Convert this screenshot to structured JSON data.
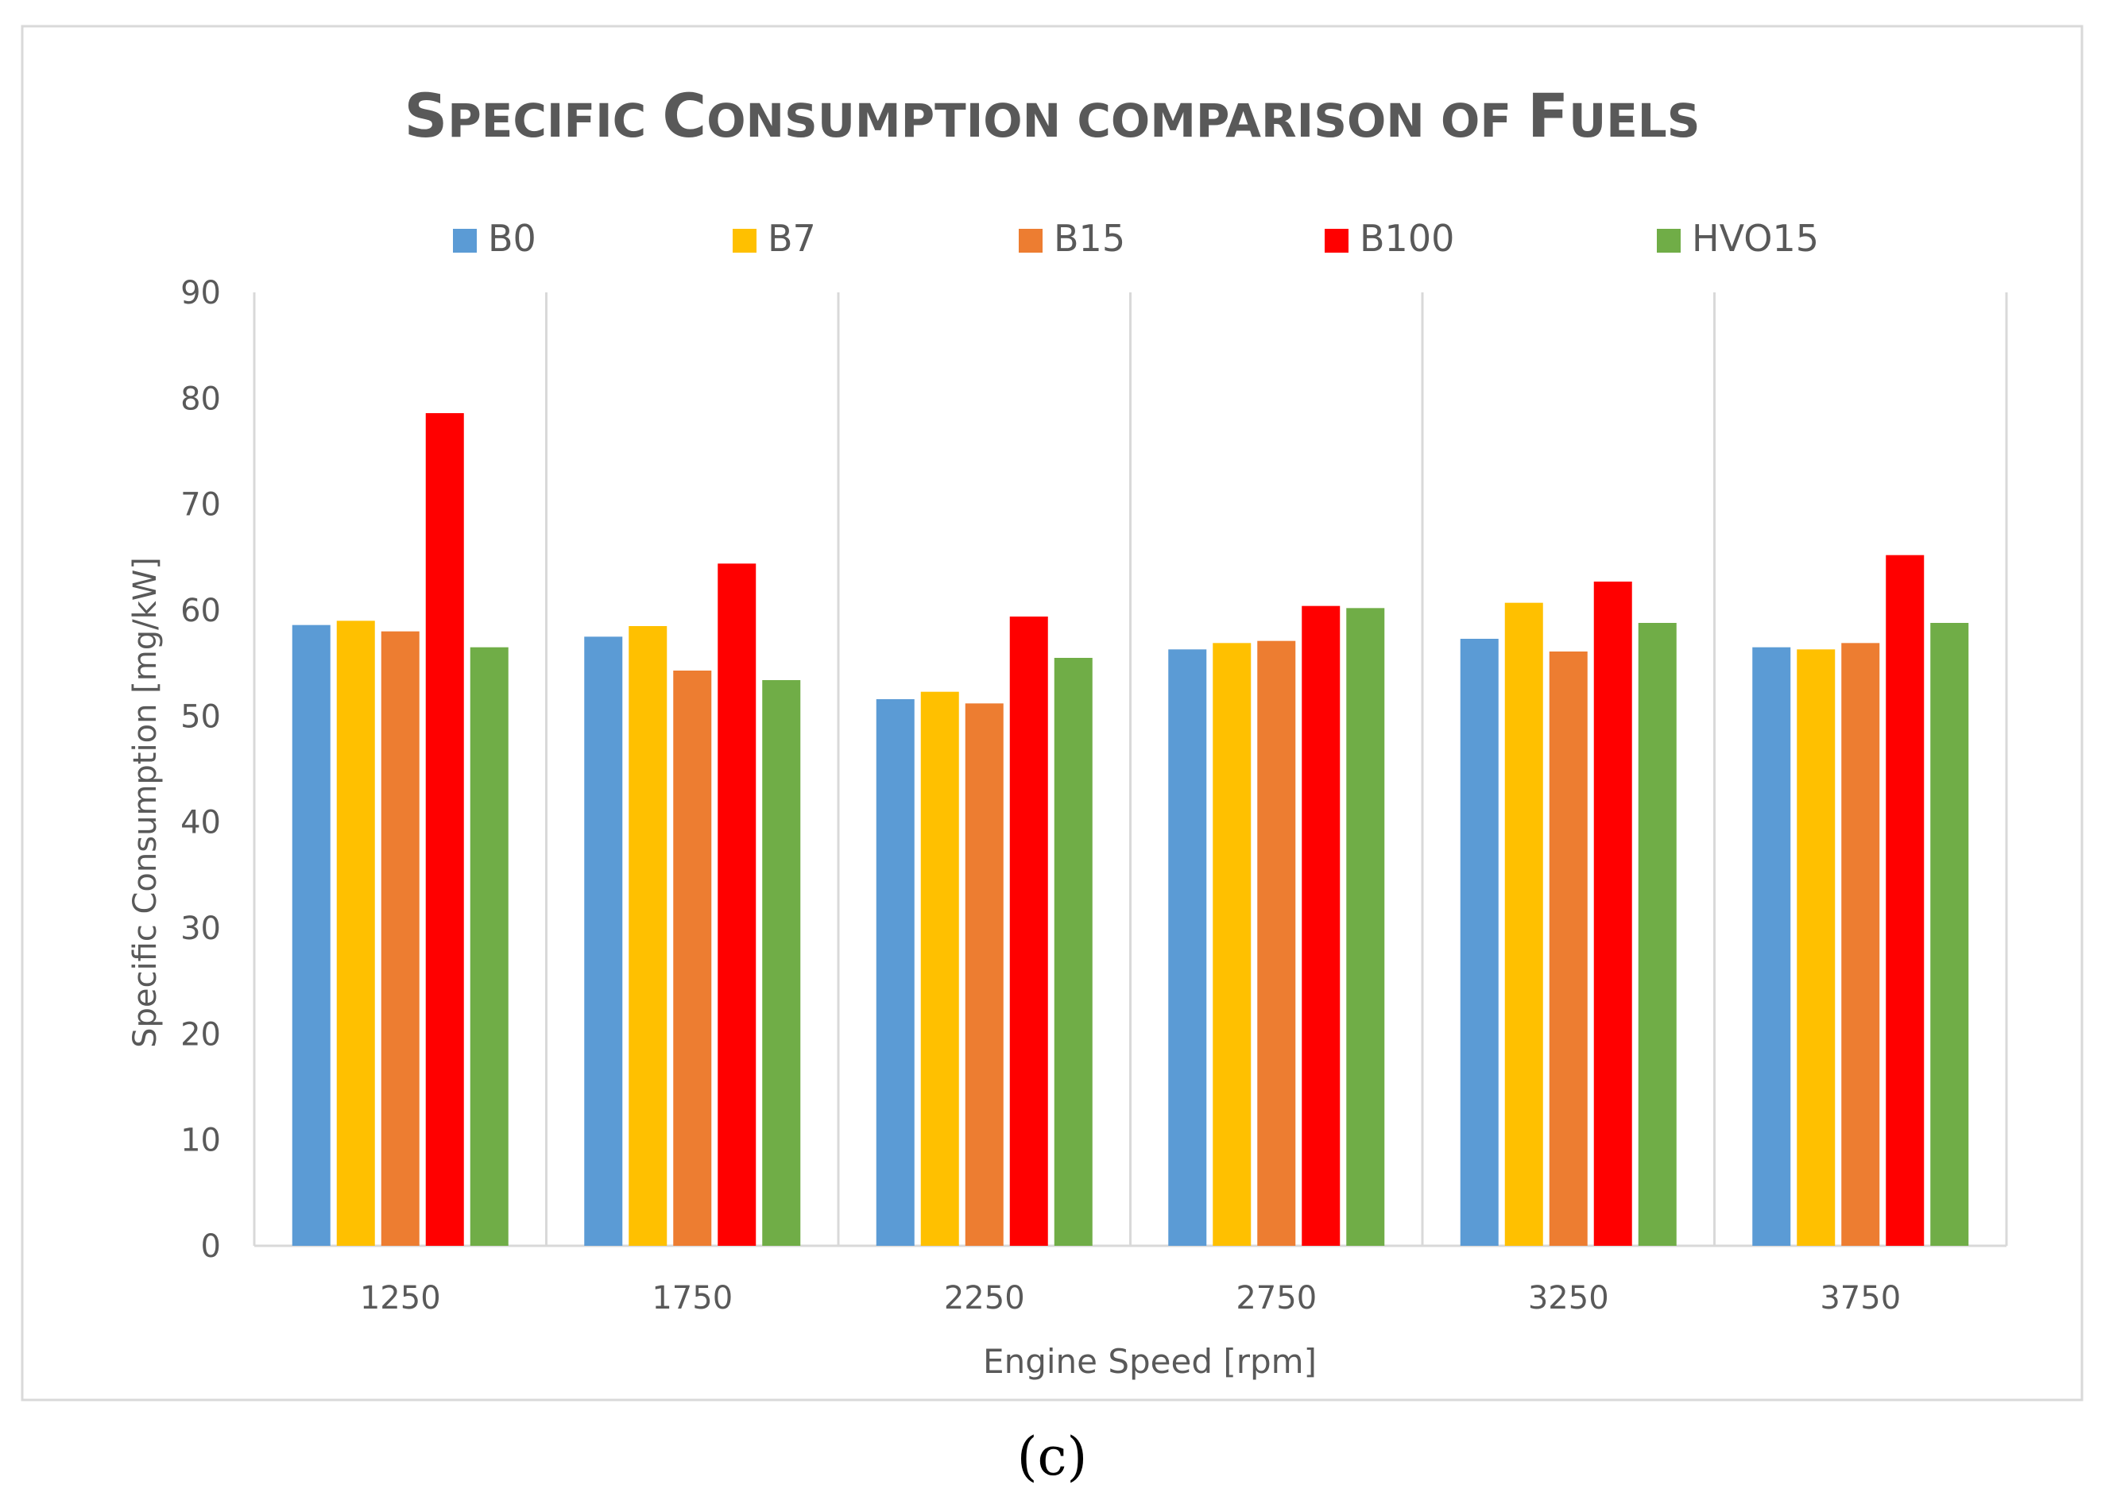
{
  "chart_data": {
    "type": "bar",
    "title_parts": [
      {
        "text": "S",
        "small": false
      },
      {
        "text": "PECIFIC ",
        "small": true
      },
      {
        "text": "C",
        "small": false
      },
      {
        "text": "ONSUMPTION COMPARISON OF ",
        "small": true
      },
      {
        "text": "F",
        "small": false
      },
      {
        "text": "UELS",
        "small": true
      }
    ],
    "title": "Specific Consumption comparison of Fuels",
    "xlabel": "Engine Speed [rpm]",
    "ylabel": "Specific Consumption [mg/kW]",
    "ylim": [
      0,
      90
    ],
    "yticks": [
      0,
      10,
      20,
      30,
      40,
      50,
      60,
      70,
      80,
      90
    ],
    "grid": false,
    "legend_position": "top",
    "categories": [
      "1250",
      "1750",
      "2250",
      "2750",
      "3250",
      "3750"
    ],
    "series": [
      {
        "name": "B0",
        "color": "#5b9bd5",
        "values": [
          58.6,
          57.5,
          51.6,
          56.3,
          57.3,
          56.5
        ]
      },
      {
        "name": "B7",
        "color": "#ffc000",
        "values": [
          59.0,
          58.5,
          52.3,
          56.9,
          60.7,
          56.3
        ]
      },
      {
        "name": "B15",
        "color": "#ed7d31",
        "values": [
          58.0,
          54.3,
          51.2,
          57.1,
          56.1,
          56.9
        ]
      },
      {
        "name": "B100",
        "color": "#ff0000",
        "values": [
          78.6,
          64.4,
          59.4,
          60.4,
          62.7,
          65.2
        ]
      },
      {
        "name": "HVO15",
        "color": "#70ad47",
        "values": [
          56.5,
          53.4,
          55.5,
          60.2,
          58.8,
          58.8
        ]
      }
    ]
  },
  "caption": "(c)"
}
